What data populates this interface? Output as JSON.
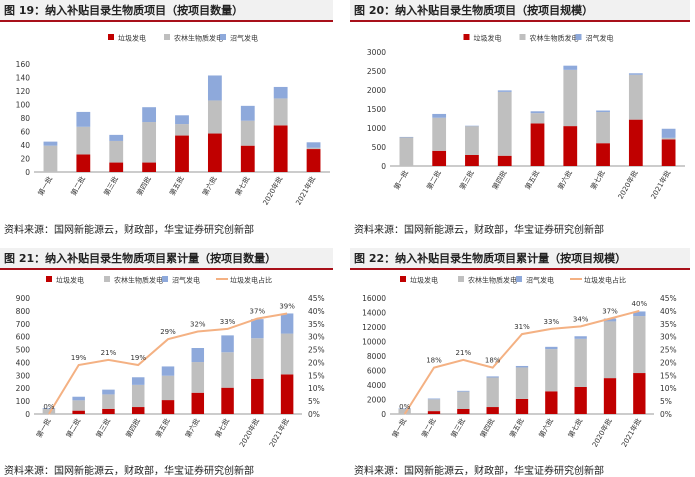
{
  "colors": {
    "red": "#c00000",
    "gray": "#bfbfbf",
    "blue": "#8ea9db",
    "orange": "#f4b183",
    "title_rule": "#a8101a"
  },
  "charts": [
    {
      "title": "图 19：纳入补贴目录生物质项目（按项目数量）",
      "source": "资料来源：国网新能源云，财政部，华宝证券研究创新部",
      "chart_data": {
        "type": "bar",
        "categories": [
          "第一批",
          "第二批",
          "第三批",
          "第四批",
          "第五批",
          "第六批",
          "第七批",
          "2020年批",
          "2021年批"
        ],
        "series": [
          {
            "name": "垃圾发电",
            "values": [
              0,
              26,
              14,
              14,
              54,
              57,
              39,
              69,
              34
            ]
          },
          {
            "name": "农林生物质发电",
            "values": [
              39,
              41,
              32,
              60,
              17,
              49,
              37,
              40,
              2
            ]
          },
          {
            "name": "沼气发电",
            "values": [
              6,
              22,
              9,
              22,
              13,
              37,
              22,
              17,
              8
            ]
          }
        ],
        "ylim": [
          0,
          160
        ],
        "yticks": [
          0,
          20,
          40,
          60,
          80,
          100,
          120,
          140,
          160
        ],
        "legend": "top"
      }
    },
    {
      "title": "图 20：纳入补贴目录生物质项目（按项目规模）",
      "source": "资料来源：国网新能源云，财政部，华宝证券研究创新部",
      "chart_data": {
        "type": "bar",
        "categories": [
          "第一批",
          "第二批",
          "第三批",
          "第四批",
          "第五批",
          "第六批",
          "第七批",
          "2020年批",
          "2021年批"
        ],
        "series": [
          {
            "name": "垃圾发电",
            "values": [
              0,
              400,
              290,
              270,
              1120,
              1050,
              600,
              1220,
              700
            ]
          },
          {
            "name": "农林生物质发电",
            "values": [
              760,
              870,
              760,
              1680,
              270,
              1480,
              820,
              1180,
              40
            ]
          },
          {
            "name": "沼气发电",
            "values": [
              5,
              100,
              10,
              40,
              50,
              110,
              40,
              40,
              240
            ]
          }
        ],
        "ylim": [
          0,
          3000
        ],
        "yticks": [
          0,
          500,
          1000,
          1500,
          2000,
          2500,
          3000
        ],
        "legend": "top"
      }
    },
    {
      "title": "图 21：纳入补贴目录生物质项目累计量（按项目数量）",
      "source": "资料来源：国网新能源云，财政部，华宝证券研究创新部",
      "chart_data": {
        "type": "bar",
        "categories": [
          "第一批",
          "第二批",
          "第三批",
          "第四批",
          "第五批",
          "第六批",
          "第七批",
          "2020年批",
          "2021年批"
        ],
        "series": [
          {
            "name": "垃圾发电",
            "values": [
              0,
              26,
              40,
              54,
              108,
              165,
              204,
              273,
              307
            ]
          },
          {
            "name": "农林生物质发电",
            "values": [
              39,
              80,
              112,
              172,
              189,
              238,
              275,
              315,
              317
            ]
          },
          {
            "name": "沼气发电",
            "values": [
              6,
              28,
              37,
              59,
              72,
              109,
              131,
              148,
              156
            ]
          }
        ],
        "line": {
          "name": "垃圾发电占比",
          "values": [
            0,
            19,
            21,
            19,
            29,
            32,
            33,
            37,
            39
          ],
          "labels": [
            "0%",
            "19%",
            "21%",
            "19%",
            "29%",
            "32%",
            "33%",
            "37%",
            "39%"
          ]
        },
        "ylim": [
          0,
          900
        ],
        "yticks": [
          0,
          100,
          200,
          300,
          400,
          500,
          600,
          700,
          800,
          900
        ],
        "y2lim": [
          0,
          45
        ],
        "y2ticks": [
          "0%",
          "5%",
          "10%",
          "15%",
          "20%",
          "25%",
          "30%",
          "35%",
          "40%",
          "45%"
        ],
        "legend": "top"
      }
    },
    {
      "title": "图 22：纳入补贴目录生物质项目累计量（按项目规模）",
      "source": "资料来源：国网新能源云，财政部，华宝证券研究创新部",
      "chart_data": {
        "type": "bar",
        "categories": [
          "第一批",
          "第二批",
          "第三批",
          "第四批",
          "第五批",
          "第六批",
          "第七批",
          "2020年批",
          "2021年批"
        ],
        "series": [
          {
            "name": "垃圾发电",
            "values": [
              0,
              400,
              690,
              960,
              2080,
              3130,
              3730,
              4950,
              5650
            ]
          },
          {
            "name": "农林生物质发电",
            "values": [
              760,
              1630,
              2390,
              4070,
              4340,
              5820,
              6640,
              7820,
              7860
            ]
          },
          {
            "name": "沼气发电",
            "values": [
              5,
              105,
              115,
              155,
              205,
              315,
              355,
              395,
              635
            ]
          }
        ],
        "line": {
          "name": "垃圾发电占比",
          "values": [
            0,
            18,
            21,
            18,
            31,
            33,
            34,
            37,
            40
          ],
          "labels": [
            "0%",
            "18%",
            "21%",
            "18%",
            "31%",
            "33%",
            "34%",
            "37%",
            "40%"
          ]
        },
        "ylim": [
          0,
          16000
        ],
        "yticks": [
          0,
          2000,
          4000,
          6000,
          8000,
          10000,
          12000,
          14000,
          16000
        ],
        "y2lim": [
          0,
          45
        ],
        "y2ticks": [
          "0%",
          "5%",
          "10%",
          "15%",
          "20%",
          "25%",
          "30%",
          "35%",
          "40%",
          "45%"
        ],
        "legend": "top"
      }
    }
  ]
}
